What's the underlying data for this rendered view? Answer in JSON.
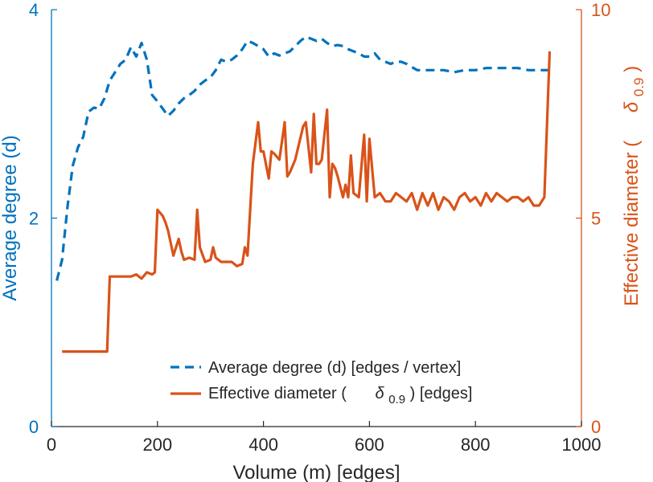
{
  "chart_data": {
    "type": "line",
    "title": "",
    "xlabel": "Volume (m) [edges]",
    "ylabel_left": "Average degree (d)",
    "ylabel_right": "Effective diameter (δ0.9)",
    "ylabel_right_parts": {
      "main": "Effective diameter (",
      "delta": "δ",
      "sub": "0.9",
      "close": ")"
    },
    "xlim": [
      0,
      1000
    ],
    "ylim_left": [
      0,
      4
    ],
    "ylim_right": [
      0,
      10
    ],
    "xticks": [
      "0",
      "200",
      "400",
      "600",
      "800",
      "1000"
    ],
    "yticks_left": [
      "0",
      "2",
      "4"
    ],
    "yticks_right": [
      "0",
      "5",
      "10"
    ],
    "grid": false,
    "legend_position": "bottom-center",
    "colors": {
      "left": "#0072BD",
      "right": "#D95319",
      "text": "#262626",
      "axis_line": "#262626"
    },
    "legend": [
      {
        "label": "Average degree (d) [edges / vertex]",
        "style": "dashed",
        "color": "#0072BD"
      },
      {
        "label_main": "Effective diameter (",
        "label_delta": "δ",
        "label_sub": "0.9",
        "label_close": ") [edges]",
        "style": "solid",
        "color": "#D95319"
      }
    ],
    "series": [
      {
        "name": "Average degree (d) [edges / vertex]",
        "axis": "left",
        "style": "dashed",
        "x": [
          10,
          20,
          30,
          40,
          50,
          60,
          70,
          80,
          90,
          100,
          110,
          120,
          130,
          140,
          150,
          160,
          170,
          180,
          190,
          200,
          210,
          220,
          230,
          240,
          250,
          260,
          270,
          280,
          290,
          300,
          310,
          320,
          330,
          340,
          350,
          360,
          370,
          380,
          390,
          400,
          410,
          420,
          430,
          440,
          450,
          460,
          470,
          480,
          490,
          500,
          510,
          520,
          530,
          540,
          550,
          560,
          570,
          580,
          590,
          600,
          610,
          620,
          630,
          640,
          650,
          660,
          670,
          680,
          690,
          700,
          720,
          740,
          760,
          780,
          800,
          820,
          840,
          860,
          880,
          900,
          920,
          940
        ],
        "y": [
          1.4,
          1.6,
          2.1,
          2.5,
          2.68,
          2.78,
          3.02,
          3.06,
          3.05,
          3.15,
          3.32,
          3.4,
          3.48,
          3.52,
          3.64,
          3.55,
          3.68,
          3.52,
          3.18,
          3.12,
          3.05,
          2.98,
          3.03,
          3.1,
          3.15,
          3.18,
          3.22,
          3.28,
          3.32,
          3.35,
          3.42,
          3.52,
          3.5,
          3.52,
          3.56,
          3.62,
          3.7,
          3.68,
          3.65,
          3.62,
          3.55,
          3.58,
          3.56,
          3.58,
          3.6,
          3.65,
          3.7,
          3.74,
          3.72,
          3.7,
          3.72,
          3.68,
          3.65,
          3.66,
          3.65,
          3.62,
          3.6,
          3.58,
          3.55,
          3.55,
          3.58,
          3.52,
          3.5,
          3.48,
          3.5,
          3.5,
          3.48,
          3.45,
          3.42,
          3.42,
          3.42,
          3.42,
          3.4,
          3.42,
          3.42,
          3.44,
          3.44,
          3.44,
          3.44,
          3.42,
          3.42,
          3.42
        ]
      },
      {
        "name": "Effective diameter (δ0.9) [edges]",
        "axis": "right",
        "style": "solid",
        "x": [
          20,
          105,
          110,
          130,
          140,
          150,
          160,
          170,
          180,
          190,
          195,
          200,
          210,
          215,
          220,
          230,
          240,
          245,
          250,
          260,
          270,
          275,
          280,
          290,
          300,
          305,
          310,
          320,
          330,
          340,
          350,
          360,
          365,
          370,
          380,
          390,
          395,
          400,
          410,
          415,
          420,
          430,
          440,
          445,
          450,
          460,
          475,
          480,
          490,
          495,
          500,
          505,
          510,
          520,
          525,
          530,
          535,
          540,
          550,
          555,
          560,
          565,
          570,
          580,
          590,
          595,
          600,
          610,
          620,
          625,
          630,
          640,
          650,
          660,
          670,
          680,
          690,
          700,
          710,
          720,
          730,
          740,
          750,
          760,
          770,
          780,
          790,
          800,
          810,
          820,
          830,
          840,
          850,
          860,
          870,
          880,
          890,
          900,
          910,
          920,
          930,
          940
        ],
        "y": [
          1.8,
          1.8,
          3.6,
          3.6,
          3.6,
          3.6,
          3.65,
          3.55,
          3.7,
          3.65,
          3.7,
          5.2,
          5.05,
          4.9,
          4.7,
          4.1,
          4.5,
          4.2,
          4.0,
          4.05,
          4.0,
          5.2,
          4.3,
          3.95,
          4.0,
          4.3,
          4.05,
          3.95,
          3.95,
          3.95,
          3.85,
          3.9,
          4.3,
          4.1,
          6.3,
          7.3,
          6.6,
          6.6,
          5.95,
          6.6,
          6.55,
          6.4,
          7.3,
          6.0,
          6.1,
          6.4,
          7.2,
          7.3,
          6.1,
          7.5,
          6.3,
          6.3,
          6.4,
          7.6,
          5.5,
          6.3,
          6.2,
          6.0,
          5.5,
          5.8,
          5.5,
          6.5,
          5.6,
          5.5,
          7.0,
          5.4,
          6.9,
          5.5,
          5.6,
          5.5,
          5.4,
          5.4,
          5.6,
          5.5,
          5.4,
          5.6,
          5.2,
          5.6,
          5.3,
          5.6,
          5.2,
          5.5,
          5.4,
          5.2,
          5.5,
          5.6,
          5.4,
          5.5,
          5.3,
          5.6,
          5.4,
          5.6,
          5.5,
          5.4,
          5.5,
          5.5,
          5.4,
          5.5,
          5.3,
          5.3,
          5.5,
          9.0
        ]
      }
    ]
  }
}
